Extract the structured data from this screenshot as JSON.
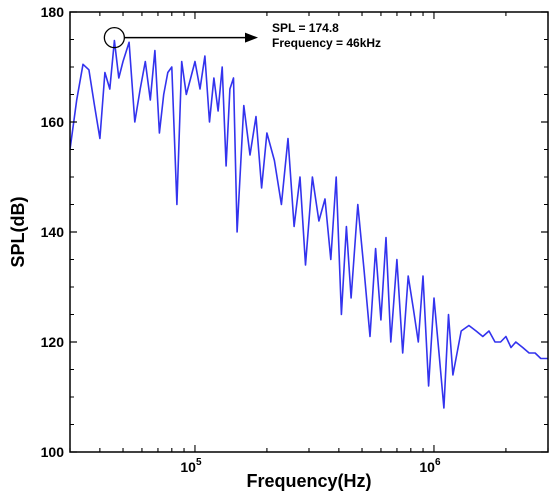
{
  "chart_data": {
    "type": "line",
    "title": "",
    "xlabel": "Frequency(Hz)",
    "ylabel": "SPL(dB)",
    "x_scale": "log",
    "xlim": [
      30000,
      3000000
    ],
    "ylim": [
      100,
      180
    ],
    "y_ticks": [
      100,
      120,
      140,
      160,
      180
    ],
    "x_ticks": [
      {
        "value": 100000,
        "base": "10",
        "exp": "5"
      },
      {
        "value": 1000000,
        "base": "10",
        "exp": "6"
      }
    ],
    "line_color": "#3333ee",
    "grid": false,
    "annotation": {
      "line1": "SPL = 174.8",
      "line2": "Frequency = 46kHz",
      "x": 46000,
      "y": 174.8
    },
    "series": [
      {
        "x": [
          30000,
          32000,
          34000,
          36000,
          38000,
          40000,
          42000,
          44000,
          46000,
          48000,
          50000,
          53000,
          56000,
          59000,
          62000,
          65000,
          68000,
          71000,
          74000,
          77000,
          80000,
          84000,
          88000,
          92000,
          96000,
          100000,
          105000,
          110000,
          115000,
          120000,
          125000,
          130000,
          135000,
          140000,
          145000,
          150000,
          160000,
          170000,
          180000,
          190000,
          200000,
          215000,
          230000,
          245000,
          260000,
          275000,
          290000,
          310000,
          330000,
          350000,
          370000,
          390000,
          410000,
          430000,
          450000,
          480000,
          510000,
          540000,
          570000,
          600000,
          630000,
          660000,
          700000,
          740000,
          780000,
          820000,
          860000,
          900000,
          950000,
          1000000,
          1050000,
          1100000,
          1150000,
          1200000,
          1300000,
          1400000,
          1500000,
          1600000,
          1700000,
          1800000,
          1900000,
          2000000,
          2100000,
          2200000,
          2350000,
          2500000,
          2650000,
          2800000,
          3000000
        ],
        "y": [
          155,
          164,
          170.5,
          169.5,
          163,
          157,
          169,
          166,
          174.8,
          168,
          171,
          174.5,
          160,
          166,
          171,
          164,
          173,
          158,
          165,
          169,
          170,
          145,
          171,
          165,
          168,
          171,
          166,
          172,
          160,
          168,
          162,
          170,
          152,
          166,
          168,
          140,
          163,
          154,
          161,
          148,
          158,
          153,
          145,
          157,
          141,
          150,
          134,
          150,
          142,
          146,
          135,
          150,
          125,
          141,
          128,
          145,
          133,
          121,
          137,
          124,
          139,
          120,
          135,
          118,
          132,
          126,
          120,
          132,
          112,
          128,
          118,
          108,
          125,
          114,
          122,
          123,
          122,
          121,
          122,
          120,
          120,
          121,
          119,
          120,
          119,
          118,
          118,
          117,
          117
        ]
      }
    ]
  }
}
